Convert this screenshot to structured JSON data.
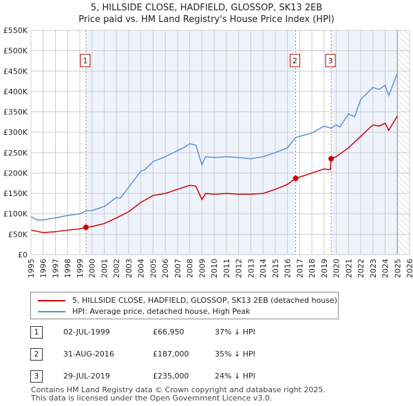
{
  "title": "5, HILLSIDE CLOSE, HADFIELD, GLOSSOP, SK13 2EB",
  "subtitle": "Price paid vs. HM Land Registry's House Price Index (HPI)",
  "chart_data": {
    "type": "line",
    "xlim": [
      1995,
      2026
    ],
    "ylim": [
      0,
      550000
    ],
    "y_ticks": [
      0,
      50000,
      100000,
      150000,
      200000,
      250000,
      300000,
      350000,
      400000,
      450000,
      500000,
      550000
    ],
    "y_tick_labels": [
      "£0",
      "£50K",
      "£100K",
      "£150K",
      "£200K",
      "£250K",
      "£300K",
      "£350K",
      "£400K",
      "£450K",
      "£500K",
      "£550K"
    ],
    "x_ticks": [
      1995,
      1996,
      1997,
      1998,
      1999,
      2000,
      2001,
      2002,
      2003,
      2004,
      2005,
      2006,
      2007,
      2008,
      2009,
      2010,
      2011,
      2012,
      2013,
      2014,
      2015,
      2016,
      2017,
      2018,
      2019,
      2020,
      2021,
      2022,
      2023,
      2024,
      2025,
      2026
    ],
    "grid": true,
    "series": [
      {
        "name": "5, HILLSIDE CLOSE, HADFIELD, GLOSSOP, SK13 2EB (detached house)",
        "color": "#cc0000",
        "x": [
          1995,
          1996,
          1997,
          1998,
          1999,
          1999.5,
          2000,
          2001,
          2002,
          2003,
          2004,
          2005,
          2006,
          2007,
          2008,
          2008.5,
          2009,
          2009.3,
          2010,
          2011,
          2012,
          2013,
          2014,
          2015,
          2016,
          2016.67,
          2017,
          2018,
          2019,
          2019.5,
          2019.58,
          2020,
          2021,
          2022,
          2023,
          2023.5,
          2024,
          2024.3,
          2025
        ],
        "y": [
          60000,
          54000,
          56000,
          60000,
          63000,
          66950,
          69000,
          76000,
          90000,
          105000,
          128000,
          145000,
          150000,
          160000,
          170000,
          168000,
          135000,
          150000,
          148000,
          150000,
          148000,
          148000,
          150000,
          160000,
          172000,
          187000,
          190000,
          200000,
          210000,
          208000,
          235000,
          240000,
          262000,
          290000,
          318000,
          315000,
          322000,
          305000,
          340000
        ]
      },
      {
        "name": "HPI: Average price, detached house, High Peak",
        "color": "#5b8fd0",
        "x": [
          1995,
          1995.5,
          1996,
          1997,
          1998,
          1999,
          1999.5,
          2000,
          2001,
          2002,
          2002.3,
          2003,
          2004,
          2004.3,
          2005,
          2006,
          2007,
          2007.5,
          2008,
          2008.5,
          2009,
          2009.3,
          2010,
          2011,
          2012,
          2013,
          2014,
          2015,
          2016,
          2016.67,
          2017,
          2018,
          2019,
          2019.58,
          2020,
          2020.3,
          2021,
          2021.5,
          2022,
          2023,
          2023.5,
          2024,
          2024.3,
          2025
        ],
        "y": [
          93000,
          85000,
          85000,
          90000,
          96000,
          100000,
          107000,
          108000,
          118000,
          140000,
          138000,
          165000,
          205000,
          208000,
          228000,
          240000,
          255000,
          262000,
          272000,
          268000,
          220000,
          240000,
          238000,
          240000,
          238000,
          235000,
          240000,
          250000,
          262000,
          287000,
          290000,
          298000,
          315000,
          310000,
          318000,
          313000,
          345000,
          338000,
          380000,
          410000,
          405000,
          415000,
          390000,
          445000
        ]
      }
    ],
    "sales": [
      {
        "label": "1",
        "x": 1999.5,
        "y": 66950
      },
      {
        "label": "2",
        "x": 2016.67,
        "y": 187000
      },
      {
        "label": "3",
        "x": 2019.58,
        "y": 235000
      }
    ],
    "shaded_ranges": [
      [
        1999.5,
        2016.67
      ],
      [
        2019.58,
        2025
      ]
    ],
    "forecast_hatch_from": 2025,
    "legend": "below"
  },
  "table": [
    {
      "num": "1",
      "date": "02-JUL-1999",
      "price": "£66,950",
      "hpi": "37% ↓ HPI"
    },
    {
      "num": "2",
      "date": "31-AUG-2016",
      "price": "£187,000",
      "hpi": "35% ↓ HPI"
    },
    {
      "num": "3",
      "date": "29-JUL-2019",
      "price": "£235,000",
      "hpi": "24% ↓ HPI"
    }
  ],
  "footer": [
    "Contains HM Land Registry data © Crown copyright and database right 2025.",
    "This data is licensed under the Open Government Licence v3.0."
  ]
}
